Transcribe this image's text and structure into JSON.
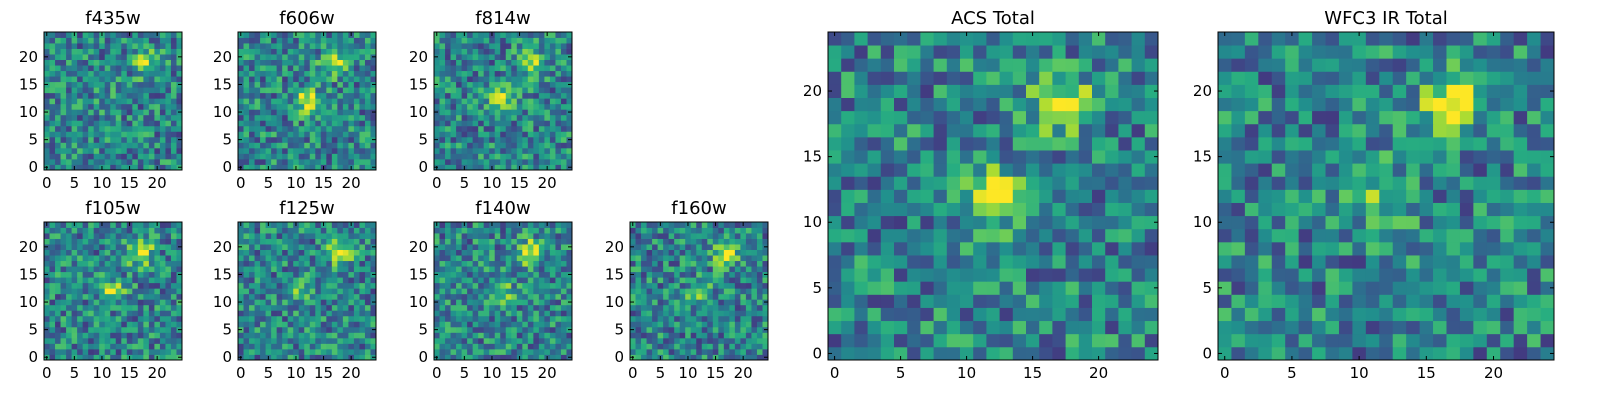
{
  "chart_data": [
    {
      "type": "heatmap",
      "title": "f435w",
      "colormap": "viridis",
      "grid": false,
      "xlim": [
        0,
        24
      ],
      "ylim": [
        0,
        24
      ],
      "xticks": [
        0,
        5,
        10,
        15,
        20
      ],
      "yticks": [
        0,
        5,
        10,
        15,
        20
      ],
      "sources": [
        {
          "x": 18,
          "y": 19,
          "strength": 0.45
        },
        {
          "x": 12,
          "y": 12,
          "strength": 0.18
        }
      ]
    },
    {
      "type": "heatmap",
      "title": "f606w",
      "colormap": "viridis",
      "grid": false,
      "xlim": [
        0,
        24
      ],
      "ylim": [
        0,
        24
      ],
      "xticks": [
        0,
        5,
        10,
        15,
        20
      ],
      "yticks": [
        0,
        5,
        10,
        15,
        20
      ],
      "sources": [
        {
          "x": 17,
          "y": 19,
          "strength": 0.48
        },
        {
          "x": 12,
          "y": 12,
          "strength": 0.45
        }
      ]
    },
    {
      "type": "heatmap",
      "title": "f814w",
      "colormap": "viridis",
      "grid": false,
      "xlim": [
        0,
        24
      ],
      "ylim": [
        0,
        24
      ],
      "xticks": [
        0,
        5,
        10,
        15,
        20
      ],
      "yticks": [
        0,
        5,
        10,
        15,
        20
      ],
      "sources": [
        {
          "x": 17,
          "y": 19,
          "strength": 0.45
        },
        {
          "x": 12,
          "y": 12,
          "strength": 0.45
        }
      ]
    },
    {
      "type": "heatmap",
      "title": "f105w",
      "colormap": "viridis",
      "grid": false,
      "xlim": [
        0,
        24
      ],
      "ylim": [
        0,
        24
      ],
      "xticks": [
        0,
        5,
        10,
        15,
        20
      ],
      "yticks": [
        0,
        5,
        10,
        15,
        20
      ],
      "sources": [
        {
          "x": 17,
          "y": 19,
          "strength": 0.55
        },
        {
          "x": 12,
          "y": 12,
          "strength": 0.38
        }
      ]
    },
    {
      "type": "heatmap",
      "title": "f125w",
      "colormap": "viridis",
      "grid": false,
      "xlim": [
        0,
        24
      ],
      "ylim": [
        0,
        24
      ],
      "xticks": [
        0,
        5,
        10,
        15,
        20
      ],
      "yticks": [
        0,
        5,
        10,
        15,
        20
      ],
      "sources": [
        {
          "x": 18,
          "y": 19,
          "strength": 0.5
        },
        {
          "x": 11,
          "y": 12,
          "strength": 0.32
        }
      ]
    },
    {
      "type": "heatmap",
      "title": "f140w",
      "colormap": "viridis",
      "grid": false,
      "xlim": [
        0,
        24
      ],
      "ylim": [
        0,
        24
      ],
      "xticks": [
        0,
        5,
        10,
        15,
        20
      ],
      "yticks": [
        0,
        5,
        10,
        15,
        20
      ],
      "sources": [
        {
          "x": 17,
          "y": 19,
          "strength": 0.5
        },
        {
          "x": 12,
          "y": 12,
          "strength": 0.3
        }
      ]
    },
    {
      "type": "heatmap",
      "title": "f160w",
      "colormap": "viridis",
      "grid": false,
      "xlim": [
        0,
        24
      ],
      "ylim": [
        0,
        24
      ],
      "xticks": [
        0,
        5,
        10,
        15,
        20
      ],
      "yticks": [
        0,
        5,
        10,
        15,
        20
      ],
      "sources": [
        {
          "x": 17,
          "y": 19,
          "strength": 0.55
        },
        {
          "x": 12,
          "y": 12,
          "strength": 0.28
        }
      ]
    },
    {
      "type": "heatmap",
      "title": "ACS Total",
      "colormap": "viridis",
      "grid": false,
      "xlim": [
        0,
        24
      ],
      "ylim": [
        0,
        24
      ],
      "xticks": [
        0,
        5,
        10,
        15,
        20
      ],
      "yticks": [
        0,
        5,
        10,
        15,
        20
      ],
      "sources": [
        {
          "x": 17,
          "y": 19,
          "strength": 0.55
        },
        {
          "x": 12,
          "y": 12,
          "strength": 0.5
        }
      ]
    },
    {
      "type": "heatmap",
      "title": "WFC3 IR Total",
      "colormap": "viridis",
      "grid": false,
      "xlim": [
        0,
        24
      ],
      "ylim": [
        0,
        24
      ],
      "xticks": [
        0,
        5,
        10,
        15,
        20
      ],
      "yticks": [
        0,
        5,
        10,
        15,
        20
      ],
      "sources": [
        {
          "x": 17,
          "y": 19,
          "strength": 0.6
        },
        {
          "x": 12,
          "y": 12,
          "strength": 0.32
        }
      ]
    }
  ]
}
